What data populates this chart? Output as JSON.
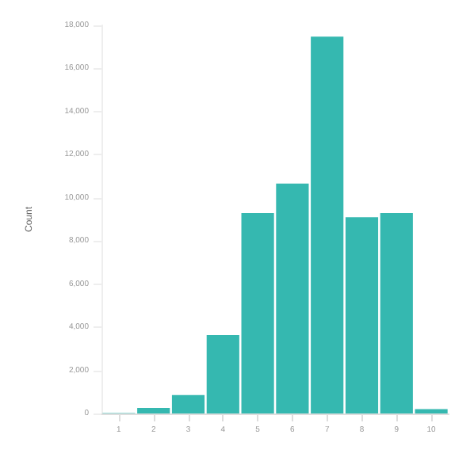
{
  "chart_data": {
    "type": "bar",
    "ylabel": "Count",
    "categories": [
      "1",
      "2",
      "3",
      "4",
      "5",
      "6",
      "7",
      "8",
      "9",
      "10"
    ],
    "values": [
      20,
      260,
      850,
      3640,
      9290,
      10660,
      17480,
      9100,
      9290,
      200
    ],
    "color": "#35b8b0",
    "ylim": [
      0,
      18000
    ],
    "yticks": [
      {
        "value": 0,
        "label": "0"
      },
      {
        "value": 2000,
        "label": "2,000"
      },
      {
        "value": 4000,
        "label": "4,000"
      },
      {
        "value": 6000,
        "label": "6,000"
      },
      {
        "value": 8000,
        "label": "8,000"
      },
      {
        "value": 10000,
        "label": "10,000"
      },
      {
        "value": 12000,
        "label": "12,000"
      },
      {
        "value": 14000,
        "label": "14,000"
      },
      {
        "value": 16000,
        "label": "16,000"
      },
      {
        "value": 18000,
        "label": "18,000"
      }
    ],
    "grid": false
  }
}
